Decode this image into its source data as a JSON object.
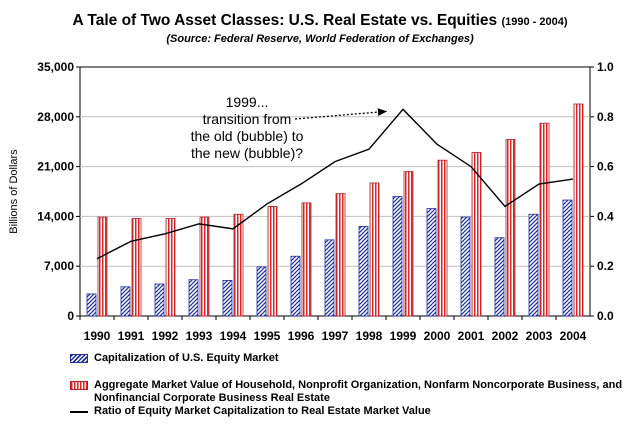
{
  "chart_data": {
    "type": "bar",
    "title": "A Tale of Two Asset Classes: U.S. Real Estate vs. Equities",
    "title_years": "(1990 - 2004)",
    "subtitle": "(Source: Federal Reserve, World Federation of Exchanges)",
    "ylabel": "Billions of Dollars",
    "ylim": [
      0,
      35000
    ],
    "y_ticks": [
      "0",
      "7,000",
      "14,000",
      "21,000",
      "28,000",
      "35,000"
    ],
    "y2lim": [
      0,
      1.0
    ],
    "y2_ticks": [
      "0.0",
      "0.2",
      "0.4",
      "0.6",
      "0.8",
      "1.0"
    ],
    "categories": [
      "1990",
      "1991",
      "1992",
      "1993",
      "1994",
      "1995",
      "1996",
      "1997",
      "1998",
      "1999",
      "2000",
      "2001",
      "2002",
      "2003",
      "2004"
    ],
    "series": [
      {
        "name": "Capitalization of U.S. Equity Market",
        "kind": "bar",
        "color": "#1f2f9a",
        "values": [
          3100,
          4100,
          4500,
          5100,
          5000,
          6900,
          8400,
          10700,
          12600,
          16800,
          15100,
          13900,
          11000,
          14300,
          16300
        ]
      },
      {
        "name": "Aggregate Market Value of Household, Nonprofit Organization, Nonfarm Noncorporate Business, and Nonfinancial Corporate Business Real Estate",
        "kind": "bar",
        "color": "#d8262b",
        "values": [
          13900,
          13700,
          13700,
          13900,
          14300,
          15400,
          15900,
          17200,
          18700,
          20300,
          21900,
          23000,
          24800,
          27100,
          29800
        ]
      },
      {
        "name": "Ratio of Equity Market Capitalization to Real Estate Market Value",
        "kind": "line",
        "axis": "right",
        "color": "#000000",
        "values": [
          0.23,
          0.3,
          0.33,
          0.37,
          0.35,
          0.45,
          0.53,
          0.62,
          0.67,
          0.83,
          0.69,
          0.6,
          0.44,
          0.53,
          0.55
        ]
      }
    ],
    "annotation": {
      "lines": [
        "1999...",
        "transition from",
        "the old (bubble) to",
        "the new (bubble)?"
      ],
      "points_to": "1999"
    },
    "grid": true,
    "legend_position": "bottom"
  }
}
